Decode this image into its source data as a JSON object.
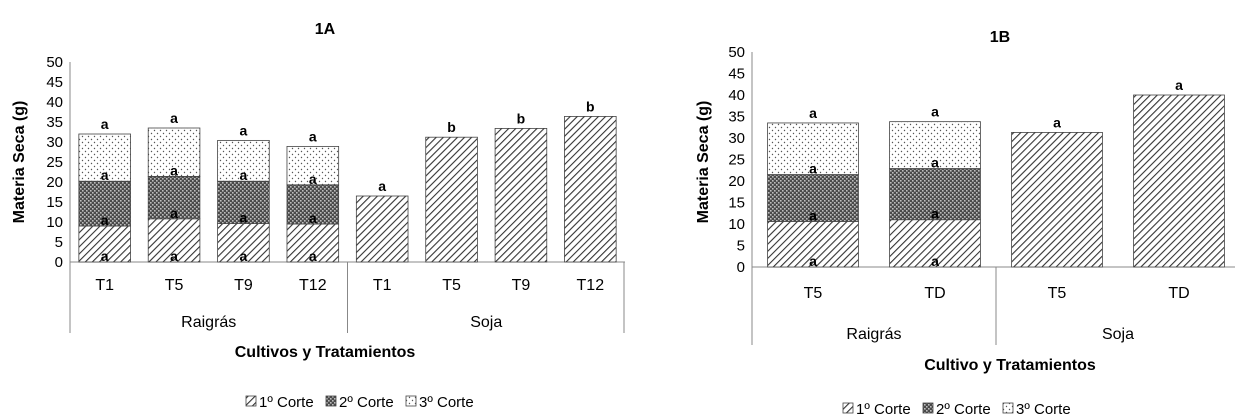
{
  "legend": {
    "items": [
      {
        "label": "1º Corte",
        "pattern": "diag"
      },
      {
        "label": "2º Corte",
        "pattern": "dark"
      },
      {
        "label": "3º Corte",
        "pattern": "dots"
      }
    ]
  },
  "chart_data": [
    {
      "type": "bar",
      "stacked": true,
      "title": "1A",
      "ylabel": "Materia Seca (g)",
      "xlabel": "Cultivos y Tratamientos",
      "ylim": [
        0,
        50
      ],
      "yticks": [
        0,
        5,
        10,
        15,
        20,
        25,
        30,
        35,
        40,
        45,
        50
      ],
      "grid": false,
      "legend_position": "bottom",
      "categories": [
        "T1",
        "T5",
        "T9",
        "T12",
        "T1",
        "T5",
        "T9",
        "T12"
      ],
      "groups": [
        {
          "label": "Raigrás",
          "span": 4
        },
        {
          "label": "Soja",
          "span": 4
        }
      ],
      "series": [
        {
          "name": "1º Corte",
          "values": [
            9,
            10.8,
            9.6,
            9.5,
            16.5,
            31.2,
            33.4,
            36.4
          ],
          "labels": [
            "a",
            "a",
            "a",
            "a",
            "",
            "",
            "",
            ""
          ]
        },
        {
          "name": "2º Corte",
          "values": [
            11.2,
            10.6,
            10.6,
            9.8,
            0,
            0,
            0,
            0
          ],
          "labels": [
            "a",
            "a",
            "a",
            "a",
            "",
            "",
            "",
            ""
          ]
        },
        {
          "name": "3º Corte",
          "values": [
            11.8,
            12.1,
            10.2,
            9.6,
            0,
            0,
            0,
            0
          ],
          "labels": [
            "a",
            "a",
            "a",
            "a",
            "",
            "",
            "",
            ""
          ]
        }
      ],
      "top_labels": [
        "a",
        "a",
        "a",
        "a",
        "a",
        "b",
        "b",
        "b"
      ]
    },
    {
      "type": "bar",
      "stacked": true,
      "title": "1B",
      "ylabel": "Materia Seca (g)",
      "xlabel": "Cultivo y Tratamientos",
      "ylim": [
        0,
        50
      ],
      "yticks": [
        0,
        5,
        10,
        15,
        20,
        25,
        30,
        35,
        40,
        45,
        50
      ],
      "grid": false,
      "legend_position": "bottom",
      "categories": [
        "T5",
        "TD",
        "T5",
        "TD"
      ],
      "groups": [
        {
          "label": "Raigrás",
          "span": 2
        },
        {
          "label": "Soja",
          "span": 2
        }
      ],
      "series": [
        {
          "name": "1º Corte",
          "values": [
            10.6,
            11,
            31.3,
            40
          ],
          "labels": [
            "a",
            "a",
            "",
            ""
          ]
        },
        {
          "name": "2º Corte",
          "values": [
            10.9,
            11.9,
            0,
            0
          ],
          "labels": [
            "a",
            "a",
            "",
            ""
          ]
        },
        {
          "name": "3º Corte",
          "values": [
            12,
            10.9,
            0,
            0
          ],
          "labels": [
            "a",
            "a",
            "",
            ""
          ]
        }
      ],
      "top_labels": [
        "a",
        "a",
        "a",
        "a"
      ]
    }
  ]
}
